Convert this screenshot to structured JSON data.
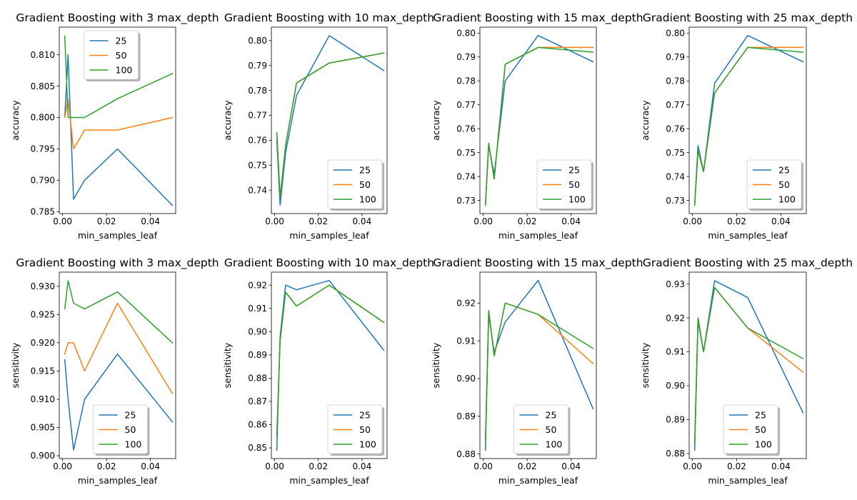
{
  "figure": {
    "colors": {
      "25": "#1f77b4",
      "50": "#ff7f0e",
      "100": "#2ca02c"
    }
  },
  "chart_data": [
    {
      "type": "line",
      "title": "Gradient Boosting with 3 max_depth",
      "xlabel": "min_samples_leaf",
      "ylabel": "accuracy",
      "xlim": [
        -0.0015,
        0.0515
      ],
      "ylim": [
        0.7847,
        0.8144
      ],
      "xticks": [
        0.0,
        0.02,
        0.04
      ],
      "xtick_labels": [
        "0.00",
        "0.02",
        "0.04"
      ],
      "yticks": [
        0.785,
        0.79,
        0.795,
        0.8,
        0.805,
        0.81
      ],
      "ytick_labels": [
        "0.785",
        "0.790",
        "0.795",
        "0.800",
        "0.805",
        "0.810"
      ],
      "legend": "upper-center",
      "x": [
        0.001,
        0.0025,
        0.005,
        0.01,
        0.025,
        0.05
      ],
      "series": [
        {
          "name": "25",
          "values": [
            0.8,
            0.81,
            0.787,
            0.79,
            0.795,
            0.786
          ]
        },
        {
          "name": "50",
          "values": [
            0.8,
            0.803,
            0.795,
            0.798,
            0.798,
            0.8
          ]
        },
        {
          "name": "100",
          "values": [
            0.813,
            0.8,
            0.8,
            0.8,
            0.803,
            0.807
          ]
        }
      ]
    },
    {
      "type": "line",
      "title": "Gradient Boosting with 10 max_depth",
      "xlabel": "min_samples_leaf",
      "ylabel": "accuracy",
      "xlim": [
        -0.0015,
        0.0515
      ],
      "ylim": [
        0.7306,
        0.8054
      ],
      "xticks": [
        0.0,
        0.02,
        0.04
      ],
      "xtick_labels": [
        "0.00",
        "0.02",
        "0.04"
      ],
      "yticks": [
        0.74,
        0.75,
        0.76,
        0.77,
        0.78,
        0.79,
        0.8
      ],
      "ytick_labels": [
        "0.74",
        "0.75",
        "0.76",
        "0.77",
        "0.78",
        "0.79",
        "0.80"
      ],
      "legend": "lower-right",
      "x": [
        0.001,
        0.0025,
        0.005,
        0.01,
        0.025,
        0.05
      ],
      "series": [
        {
          "name": "25",
          "values": [
            0.76,
            0.734,
            0.755,
            0.778,
            0.802,
            0.788
          ]
        },
        {
          "name": "50",
          "values": [
            0.763,
            0.737,
            0.758,
            0.783,
            0.791,
            0.795
          ]
        },
        {
          "name": "100",
          "values": [
            0.763,
            0.737,
            0.758,
            0.783,
            0.791,
            0.795
          ]
        }
      ]
    },
    {
      "type": "line",
      "title": "Gradient Boosting with 15 max_depth",
      "xlabel": "min_samples_leaf",
      "ylabel": "accuracy",
      "xlim": [
        -0.0015,
        0.0515
      ],
      "ylim": [
        0.7245,
        0.8025
      ],
      "xticks": [
        0.0,
        0.02,
        0.04
      ],
      "xtick_labels": [
        "0.00",
        "0.02",
        "0.04"
      ],
      "yticks": [
        0.73,
        0.74,
        0.75,
        0.76,
        0.77,
        0.78,
        0.79,
        0.8
      ],
      "ytick_labels": [
        "0.73",
        "0.74",
        "0.75",
        "0.76",
        "0.77",
        "0.78",
        "0.79",
        "0.80"
      ],
      "legend": "lower-right",
      "x": [
        0.001,
        0.0025,
        0.005,
        0.01,
        0.025,
        0.05
      ],
      "series": [
        {
          "name": "25",
          "values": [
            0.728,
            0.753,
            0.741,
            0.78,
            0.799,
            0.788
          ]
        },
        {
          "name": "50",
          "values": [
            0.728,
            0.754,
            0.739,
            0.787,
            0.794,
            0.794
          ]
        },
        {
          "name": "100",
          "values": [
            0.728,
            0.754,
            0.739,
            0.787,
            0.794,
            0.792
          ]
        }
      ]
    },
    {
      "type": "line",
      "title": "Gradient Boosting with 25 max_depth",
      "xlabel": "min_samples_leaf",
      "ylabel": "accuracy",
      "xlim": [
        -0.0015,
        0.0515
      ],
      "ylim": [
        0.7245,
        0.8025
      ],
      "xticks": [
        0.0,
        0.02,
        0.04
      ],
      "xtick_labels": [
        "0.00",
        "0.02",
        "0.04"
      ],
      "yticks": [
        0.73,
        0.74,
        0.75,
        0.76,
        0.77,
        0.78,
        0.79,
        0.8
      ],
      "ytick_labels": [
        "0.73",
        "0.74",
        "0.75",
        "0.76",
        "0.77",
        "0.78",
        "0.79",
        "0.80"
      ],
      "legend": "lower-right",
      "x": [
        0.001,
        0.0025,
        0.005,
        0.01,
        0.025,
        0.05
      ],
      "series": [
        {
          "name": "25",
          "values": [
            0.728,
            0.753,
            0.742,
            0.779,
            0.799,
            0.788
          ]
        },
        {
          "name": "50",
          "values": [
            0.728,
            0.751,
            0.742,
            0.775,
            0.794,
            0.794
          ]
        },
        {
          "name": "100",
          "values": [
            0.728,
            0.751,
            0.742,
            0.775,
            0.794,
            0.792
          ]
        }
      ]
    },
    {
      "type": "line",
      "title": "Gradient Boosting with 3 max_depth",
      "xlabel": "min_samples_leaf",
      "ylabel": "sensitivity",
      "xlim": [
        -0.0015,
        0.0515
      ],
      "ylim": [
        0.8995,
        0.9325
      ],
      "xticks": [
        0.0,
        0.02,
        0.04
      ],
      "xtick_labels": [
        "0.00",
        "0.02",
        "0.04"
      ],
      "yticks": [
        0.9,
        0.905,
        0.91,
        0.915,
        0.92,
        0.925,
        0.93
      ],
      "ytick_labels": [
        "0.900",
        "0.905",
        "0.910",
        "0.915",
        "0.920",
        "0.925",
        "0.930"
      ],
      "legend": "lower-center",
      "x": [
        0.001,
        0.0025,
        0.005,
        0.01,
        0.025,
        0.05
      ],
      "series": [
        {
          "name": "25",
          "values": [
            0.917,
            0.91,
            0.901,
            0.91,
            0.918,
            0.906
          ]
        },
        {
          "name": "50",
          "values": [
            0.918,
            0.92,
            0.92,
            0.915,
            0.927,
            0.911
          ]
        },
        {
          "name": "100",
          "values": [
            0.926,
            0.931,
            0.927,
            0.926,
            0.929,
            0.92
          ]
        }
      ]
    },
    {
      "type": "line",
      "title": "Gradient Boosting with 10 max_depth",
      "xlabel": "min_samples_leaf",
      "ylabel": "sensitivity",
      "xlim": [
        -0.0015,
        0.0515
      ],
      "ylim": [
        0.8454,
        0.9256
      ],
      "xticks": [
        0.0,
        0.02,
        0.04
      ],
      "xtick_labels": [
        "0.00",
        "0.02",
        "0.04"
      ],
      "yticks": [
        0.85,
        0.86,
        0.87,
        0.88,
        0.89,
        0.9,
        0.91,
        0.92
      ],
      "ytick_labels": [
        "0.85",
        "0.86",
        "0.87",
        "0.88",
        "0.89",
        "0.90",
        "0.91",
        "0.92"
      ],
      "legend": "lower-right",
      "x": [
        0.001,
        0.0025,
        0.005,
        0.01,
        0.025,
        0.05
      ],
      "series": [
        {
          "name": "25",
          "values": [
            0.849,
            0.898,
            0.92,
            0.918,
            0.922,
            0.892
          ]
        },
        {
          "name": "50",
          "values": [
            0.855,
            0.896,
            0.917,
            0.911,
            0.92,
            0.904
          ]
        },
        {
          "name": "100",
          "values": [
            0.855,
            0.896,
            0.917,
            0.911,
            0.92,
            0.904
          ]
        }
      ]
    },
    {
      "type": "line",
      "title": "Gradient Boosting with 15 max_depth",
      "xlabel": "min_samples_leaf",
      "ylabel": "sensitivity",
      "xlim": [
        -0.0015,
        0.0515
      ],
      "ylim": [
        0.8788,
        0.9282
      ],
      "xticks": [
        0.0,
        0.02,
        0.04
      ],
      "xtick_labels": [
        "0.00",
        "0.02",
        "0.04"
      ],
      "yticks": [
        0.88,
        0.89,
        0.9,
        0.91,
        0.92
      ],
      "ytick_labels": [
        "0.88",
        "0.89",
        "0.90",
        "0.91",
        "0.92"
      ],
      "legend": "lower-center",
      "x": [
        0.001,
        0.0025,
        0.005,
        0.01,
        0.025,
        0.05
      ],
      "series": [
        {
          "name": "25",
          "values": [
            0.881,
            0.917,
            0.907,
            0.915,
            0.926,
            0.892
          ]
        },
        {
          "name": "50",
          "values": [
            0.883,
            0.918,
            0.906,
            0.92,
            0.917,
            0.904
          ]
        },
        {
          "name": "100",
          "values": [
            0.883,
            0.918,
            0.906,
            0.92,
            0.917,
            0.908
          ]
        }
      ]
    },
    {
      "type": "line",
      "title": "Gradient Boosting with 25 max_depth",
      "xlabel": "min_samples_leaf",
      "ylabel": "sensitivity",
      "xlim": [
        -0.0015,
        0.0515
      ],
      "ylim": [
        0.8785,
        0.9335
      ],
      "xticks": [
        0.0,
        0.02,
        0.04
      ],
      "xtick_labels": [
        "0.00",
        "0.02",
        "0.04"
      ],
      "yticks": [
        0.88,
        0.89,
        0.9,
        0.91,
        0.92,
        0.93
      ],
      "ytick_labels": [
        "0.88",
        "0.89",
        "0.90",
        "0.91",
        "0.92",
        "0.93"
      ],
      "legend": "lower-center",
      "x": [
        0.001,
        0.0025,
        0.005,
        0.01,
        0.025,
        0.05
      ],
      "series": [
        {
          "name": "25",
          "values": [
            0.881,
            0.919,
            0.91,
            0.931,
            0.926,
            0.892
          ]
        },
        {
          "name": "50",
          "values": [
            0.883,
            0.92,
            0.91,
            0.929,
            0.917,
            0.904
          ]
        },
        {
          "name": "100",
          "values": [
            0.883,
            0.92,
            0.91,
            0.929,
            0.917,
            0.908
          ]
        }
      ]
    }
  ]
}
